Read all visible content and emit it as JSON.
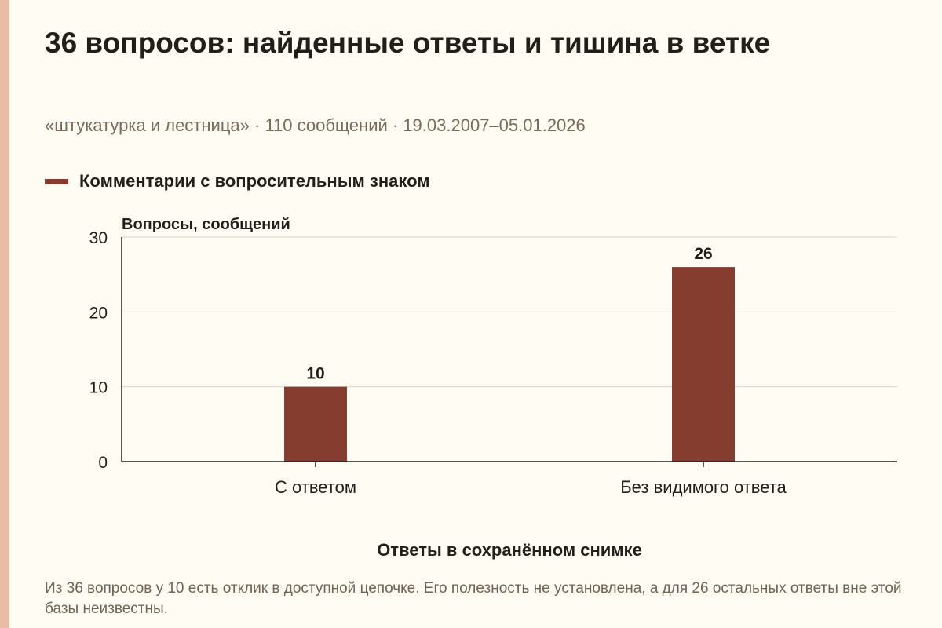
{
  "colors": {
    "accent_bar": "#ebbca5",
    "bar": "#843d2e",
    "background": "#fffcf4"
  },
  "header": {
    "title": "36 вопросов: найденные ответы и тишина в ветке",
    "subtitle": "«штукатурка и лестница» · 110 сообщений · 19.03.2007–05.01.2026"
  },
  "footnote": "Из 36 вопросов у 10 есть отклик в доступной цепочке. Его полезность не установлена, а для 26 остальных ответы вне этой базы неизвестны.",
  "chart_data": {
    "type": "bar",
    "categories": [
      "С ответом",
      "Без видимого ответа"
    ],
    "series": [
      {
        "name": "Комментарии с вопросительным знаком",
        "values": [
          10,
          26
        ]
      }
    ],
    "data_labels": [
      "10",
      "26"
    ],
    "xlabel": "Ответы в сохранённом снимке",
    "ylabel": "Вопросы, сообщений",
    "ylim": [
      0,
      30
    ],
    "yticks": [
      0,
      10,
      20,
      30
    ],
    "grid": true,
    "legend_position": "top-left"
  }
}
